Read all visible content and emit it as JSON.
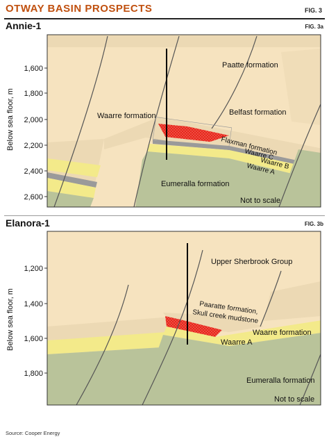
{
  "header": {
    "title": "OTWAY BASIN PROSPECTS",
    "fig": "FIG. 3"
  },
  "panel_a": {
    "title": "Annie-1",
    "fig": "FIG. 3a",
    "ylabel": "Below sea floor, m",
    "yticks": [
      "1,600",
      "1,800",
      "2,000",
      "2,200",
      "2,400",
      "2,600"
    ],
    "labels": {
      "paatte": "Paatte formation",
      "waarre": "Waarre formation",
      "belfast": "Belfast formation",
      "flaxman": "Flaxman formation",
      "waarre_c": "Waarre C",
      "waarre_b": "Waarre B",
      "waarre_a": "Waarre A",
      "eumeralla": "Eumeralla formation",
      "scale": "Not to scale"
    }
  },
  "panel_b": {
    "title": "Elanora-1",
    "fig": "FIG. 3b",
    "ylabel": "Below sea floor, m",
    "yticks": [
      "1,200",
      "1,400",
      "1,600",
      "1,800"
    ],
    "labels": {
      "upper": "Upper Sherbrook Group",
      "paaratte_1": "Paaratte formation,",
      "paaratte_2": "Skull creek mudstone",
      "waarre": "Waarre formation",
      "waarre_a": "Waarre A",
      "eumeralla": "Eumeralla formation",
      "scale": "Not to scale"
    }
  },
  "source": "Source: Cooper Energy",
  "colors": {
    "accent": "#c0500f",
    "beige": "#f6e3bf",
    "tan": "#ecd9b4",
    "green": "#b9c39a",
    "yellow": "#f3ea8a",
    "red": "#e8261c",
    "grey": "#9a9a9a"
  }
}
